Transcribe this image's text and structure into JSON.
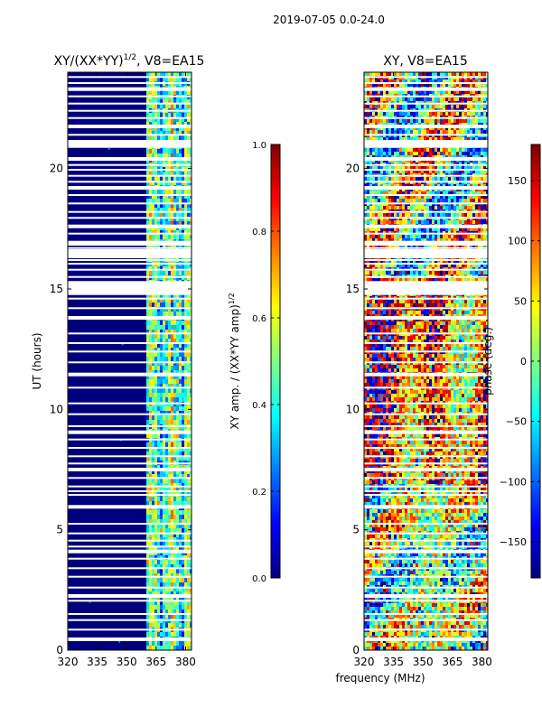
{
  "figure": {
    "suptitle": "2019-07-05 0.0-24.0",
    "xlabel": "frequency (MHz)"
  },
  "colors": {
    "jet": [
      "#00007f",
      "#0000ff",
      "#007fff",
      "#00ffff",
      "#7fff7f",
      "#ffff00",
      "#ff7f00",
      "#ff0000",
      "#7f0000"
    ]
  },
  "chart_data": [
    {
      "type": "heatmap",
      "title": "XY/(XX*YY)",
      "title_sup": "1/2",
      "title_suffix": ", V8=EA15",
      "ylabel": "UT (hours)",
      "xlim": [
        320,
        383
      ],
      "ylim": [
        0,
        24
      ],
      "xticks": [
        {
          "value": 320,
          "label": "320"
        },
        {
          "value": 335,
          "label": "335"
        },
        {
          "value": 350,
          "label": "350"
        },
        {
          "value": 365,
          "label": "365"
        },
        {
          "value": 380,
          "label": "380"
        }
      ],
      "yticks": [
        {
          "value": 0,
          "label": "0"
        },
        {
          "value": 5,
          "label": "5"
        },
        {
          "value": 10,
          "label": "10"
        },
        {
          "value": 15,
          "label": "15"
        },
        {
          "value": 20,
          "label": "20"
        }
      ],
      "flagged_channels_below_mhz": 360,
      "active_band_mhz": [
        360,
        383
      ],
      "colorbar": {
        "label": "XY amp. / (XX*YY amp)",
        "label_sup": "1/2",
        "range": [
          0.0,
          1.0
        ],
        "ticks": [
          {
            "value": 0.0,
            "label": "0.0"
          },
          {
            "value": 0.2,
            "label": "0.2"
          },
          {
            "value": 0.4,
            "label": "0.4"
          },
          {
            "value": 0.6,
            "label": "0.6"
          },
          {
            "value": 0.8,
            "label": "0.8"
          },
          {
            "value": 1.0,
            "label": "1.0"
          }
        ]
      }
    },
    {
      "type": "heatmap",
      "title": "XY, V8=EA15",
      "xlim": [
        320,
        383
      ],
      "ylim": [
        0,
        24
      ],
      "xticks": [
        {
          "value": 320,
          "label": "320"
        },
        {
          "value": 335,
          "label": "335"
        },
        {
          "value": 350,
          "label": "350"
        },
        {
          "value": 365,
          "label": "365"
        },
        {
          "value": 380,
          "label": "380"
        }
      ],
      "yticks": [
        {
          "value": 0,
          "label": "0"
        },
        {
          "value": 5,
          "label": "5"
        },
        {
          "value": 10,
          "label": "10"
        },
        {
          "value": 15,
          "label": "15"
        },
        {
          "value": 20,
          "label": "20"
        }
      ],
      "colorbar": {
        "label": "phase (deg.)",
        "range": [
          -180,
          180
        ],
        "ticks": [
          {
            "value": 150,
            "label": "150"
          },
          {
            "value": 100,
            "label": "100"
          },
          {
            "value": 50,
            "label": "50"
          },
          {
            "value": 0,
            "label": "0"
          },
          {
            "value": -50,
            "label": "−50"
          },
          {
            "value": -100,
            "label": "−100"
          },
          {
            "value": -150,
            "label": "−150"
          }
        ]
      }
    }
  ],
  "blank_ut_rows": [
    0.45,
    0.85,
    1.25,
    1.5,
    2.05,
    2.25,
    2.6,
    3.05,
    3.4,
    3.8,
    4.1,
    4.3,
    4.55,
    4.85,
    5.25,
    5.95,
    6.45,
    6.6,
    6.8,
    7.15,
    7.5,
    7.75,
    8.05,
    8.4,
    8.75,
    9.05,
    9.3,
    9.8,
    10.25,
    10.9,
    11.45,
    11.95,
    12.4,
    12.75,
    13.15,
    13.8,
    14.2,
    14.6,
    14.8,
    15.05,
    15.25,
    15.5,
    15.8,
    16.05,
    16.2,
    16.35,
    16.55,
    16.7,
    16.85,
    17.3,
    17.6,
    17.95,
    18.2,
    18.55,
    18.9,
    19.2,
    19.45,
    19.7,
    19.95,
    20.15,
    20.4,
    20.9,
    21.0,
    21.15,
    21.4,
    21.75,
    22.1,
    22.4,
    22.7,
    23.0,
    23.3,
    23.55,
    23.8
  ]
}
